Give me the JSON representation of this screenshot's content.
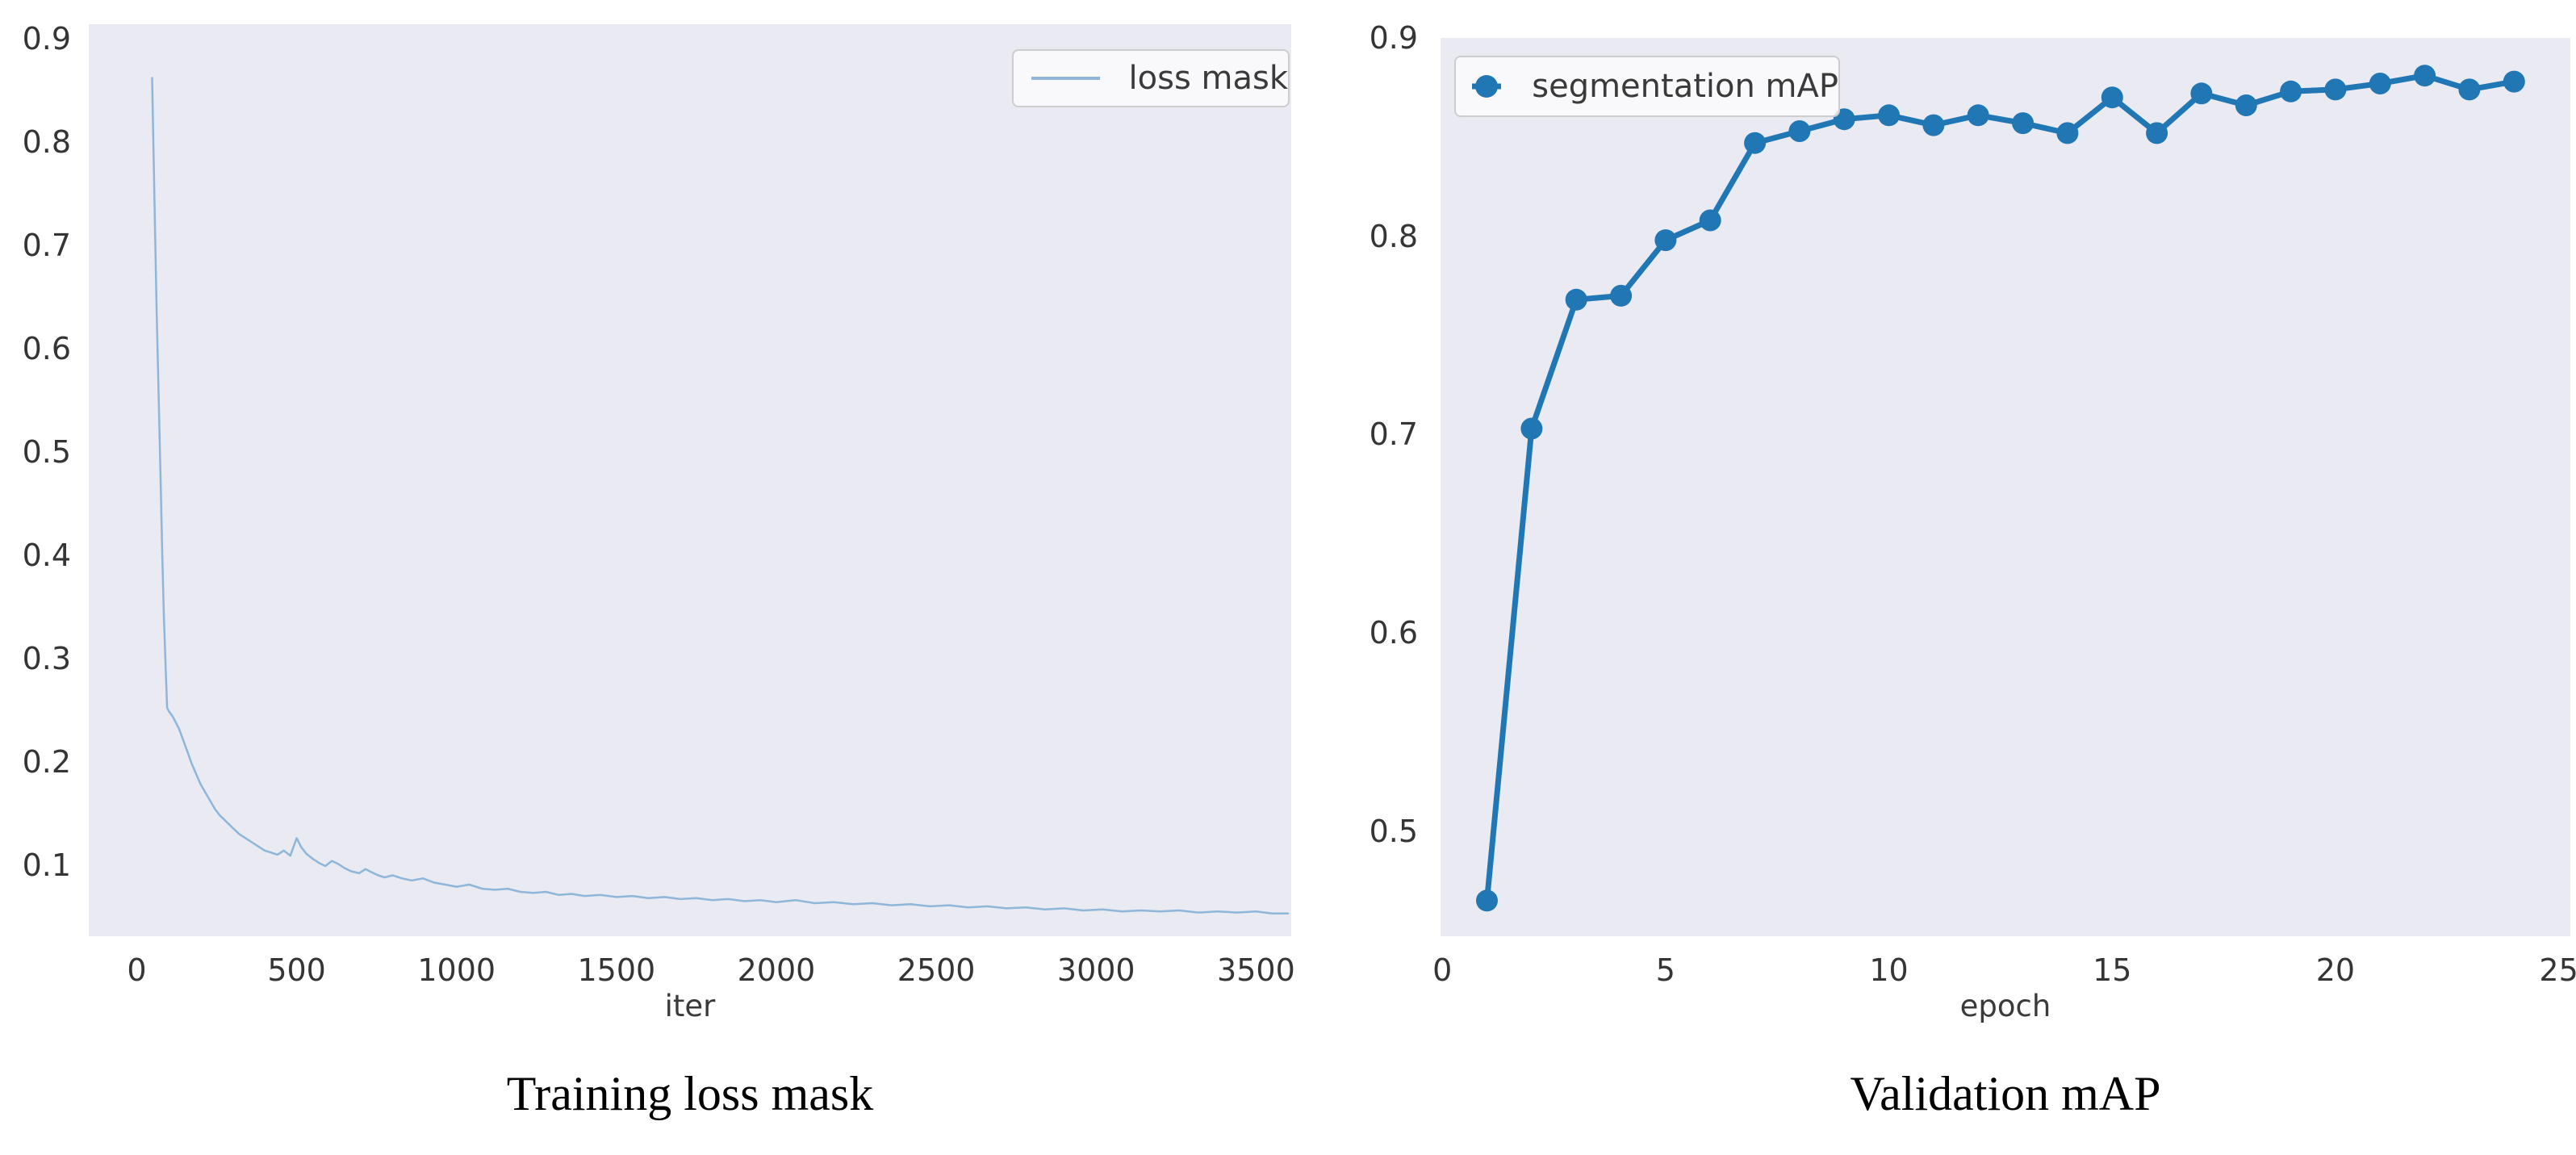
{
  "page": {
    "background": "#ffffff"
  },
  "chart_data": [
    {
      "id": "training-loss",
      "type": "line",
      "caption": "Training loss mask",
      "xlabel": "iter",
      "ylabel": "",
      "legend": {
        "label": "loss mask",
        "position": "upper right",
        "marker": false
      },
      "xlim": [
        -150,
        3610
      ],
      "ylim": [
        0.031,
        0.914
      ],
      "xticks": [
        0,
        500,
        1000,
        1500,
        2000,
        2500,
        3000,
        3500
      ],
      "yticks": [
        0.1,
        0.2,
        0.3,
        0.4,
        0.5,
        0.6,
        0.7,
        0.8,
        0.9
      ],
      "ytick_decimals": 1,
      "grid": false,
      "markers": false,
      "colors": {
        "plot_background": "#e9eaf2",
        "line": "#8fb6d9",
        "tick_label": "#353535"
      },
      "series": [
        {
          "name": "loss mask",
          "points": [
            [
              48,
              0.862
            ],
            [
              52,
              0.8
            ],
            [
              57,
              0.72
            ],
            [
              62,
              0.64
            ],
            [
              68,
              0.56
            ],
            [
              74,
              0.48
            ],
            [
              80,
              0.4
            ],
            [
              85,
              0.34
            ],
            [
              90,
              0.295
            ],
            [
              95,
              0.252
            ],
            [
              102,
              0.248
            ],
            [
              112,
              0.244
            ],
            [
              122,
              0.238
            ],
            [
              132,
              0.232
            ],
            [
              144,
              0.222
            ],
            [
              158,
              0.21
            ],
            [
              172,
              0.198
            ],
            [
              186,
              0.188
            ],
            [
              200,
              0.178
            ],
            [
              215,
              0.17
            ],
            [
              230,
              0.162
            ],
            [
              245,
              0.154
            ],
            [
              260,
              0.148
            ],
            [
              280,
              0.142
            ],
            [
              300,
              0.136
            ],
            [
              320,
              0.13
            ],
            [
              340,
              0.126
            ],
            [
              360,
              0.122
            ],
            [
              380,
              0.118
            ],
            [
              400,
              0.114
            ],
            [
              420,
              0.112
            ],
            [
              440,
              0.11
            ],
            [
              460,
              0.114
            ],
            [
              480,
              0.109
            ],
            [
              500,
              0.126
            ],
            [
              515,
              0.117
            ],
            [
              530,
              0.111
            ],
            [
              550,
              0.106
            ],
            [
              570,
              0.102
            ],
            [
              590,
              0.099
            ],
            [
              610,
              0.104
            ],
            [
              630,
              0.101
            ],
            [
              650,
              0.097
            ],
            [
              670,
              0.094
            ],
            [
              695,
              0.092
            ],
            [
              715,
              0.096
            ],
            [
              735,
              0.093
            ],
            [
              755,
              0.09
            ],
            [
              775,
              0.088
            ],
            [
              800,
              0.09
            ],
            [
              830,
              0.087
            ],
            [
              860,
              0.085
            ],
            [
              895,
              0.087
            ],
            [
              930,
              0.083
            ],
            [
              965,
              0.081
            ],
            [
              1000,
              0.079
            ],
            [
              1040,
              0.081
            ],
            [
              1080,
              0.077
            ],
            [
              1120,
              0.076
            ],
            [
              1160,
              0.077
            ],
            [
              1200,
              0.074
            ],
            [
              1240,
              0.073
            ],
            [
              1280,
              0.074
            ],
            [
              1320,
              0.071
            ],
            [
              1360,
              0.072
            ],
            [
              1400,
              0.07
            ],
            [
              1450,
              0.071
            ],
            [
              1500,
              0.069
            ],
            [
              1550,
              0.07
            ],
            [
              1600,
              0.068
            ],
            [
              1650,
              0.069
            ],
            [
              1700,
              0.067
            ],
            [
              1750,
              0.068
            ],
            [
              1800,
              0.066
            ],
            [
              1850,
              0.067
            ],
            [
              1900,
              0.065
            ],
            [
              1950,
              0.066
            ],
            [
              2000,
              0.064
            ],
            [
              2060,
              0.066
            ],
            [
              2120,
              0.063
            ],
            [
              2180,
              0.064
            ],
            [
              2240,
              0.062
            ],
            [
              2300,
              0.063
            ],
            [
              2360,
              0.061
            ],
            [
              2420,
              0.062
            ],
            [
              2480,
              0.06
            ],
            [
              2540,
              0.061
            ],
            [
              2600,
              0.059
            ],
            [
              2660,
              0.06
            ],
            [
              2720,
              0.058
            ],
            [
              2780,
              0.059
            ],
            [
              2840,
              0.057
            ],
            [
              2900,
              0.058
            ],
            [
              2960,
              0.056
            ],
            [
              3020,
              0.057
            ],
            [
              3080,
              0.055
            ],
            [
              3140,
              0.056
            ],
            [
              3200,
              0.055
            ],
            [
              3260,
              0.056
            ],
            [
              3320,
              0.054
            ],
            [
              3380,
              0.055
            ],
            [
              3440,
              0.054
            ],
            [
              3500,
              0.055
            ],
            [
              3550,
              0.053
            ],
            [
              3600,
              0.053
            ]
          ]
        }
      ]
    },
    {
      "id": "validation-map",
      "type": "line",
      "caption": "Validation mAP",
      "xlabel": "epoch",
      "ylabel": "",
      "legend": {
        "label": "segmentation mAP",
        "position": "upper left",
        "marker": true
      },
      "xlim": [
        -0.04,
        25.26
      ],
      "ylim": [
        0.447,
        0.9
      ],
      "xticks": [
        0,
        5,
        10,
        15,
        20,
        25
      ],
      "yticks": [
        0.5,
        0.6,
        0.7,
        0.8,
        0.9
      ],
      "ytick_decimals": 1,
      "grid": false,
      "markers": true,
      "colors": {
        "plot_background": "#e9eaf2",
        "line": "#2077b4",
        "tick_label": "#353535"
      },
      "series": [
        {
          "name": "segmentation mAP",
          "x": [
            1,
            2,
            3,
            4,
            5,
            6,
            7,
            8,
            9,
            10,
            11,
            12,
            13,
            14,
            15,
            16,
            17,
            18,
            19,
            20,
            21,
            22,
            23,
            24
          ],
          "y": [
            0.465,
            0.703,
            0.768,
            0.77,
            0.798,
            0.808,
            0.847,
            0.853,
            0.859,
            0.861,
            0.856,
            0.861,
            0.857,
            0.852,
            0.87,
            0.852,
            0.872,
            0.866,
            0.873,
            0.874,
            0.877,
            0.881,
            0.874,
            0.878
          ]
        }
      ]
    }
  ]
}
